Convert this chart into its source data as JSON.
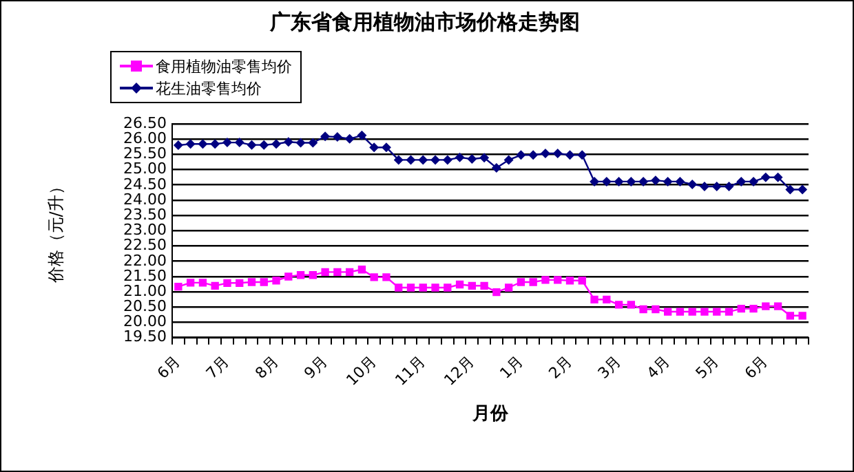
{
  "chart_data": {
    "type": "line",
    "title": "广东省食用植物油市场价格走势图",
    "xlabel": "月份",
    "ylabel": "价格（元/升）",
    "categories": [
      "6月",
      null,
      null,
      null,
      "7月",
      null,
      null,
      null,
      "8月",
      null,
      null,
      null,
      "9月",
      null,
      null,
      null,
      "10月",
      null,
      null,
      null,
      "11月",
      null,
      null,
      null,
      "12月",
      null,
      null,
      null,
      "1月",
      null,
      null,
      null,
      "2月",
      null,
      null,
      null,
      "3月",
      null,
      null,
      null,
      "4月",
      null,
      null,
      null,
      "5月",
      null,
      null,
      null,
      "6月",
      null,
      null,
      null
    ],
    "series": [
      {
        "name": "食用植物油零售均价",
        "color": "#ff00ff",
        "marker": "square",
        "values": [
          21.17,
          21.3,
          21.3,
          21.2,
          21.29,
          21.29,
          21.32,
          21.32,
          21.37,
          21.5,
          21.55,
          21.55,
          21.65,
          21.65,
          21.65,
          21.73,
          21.48,
          21.48,
          21.14,
          21.14,
          21.14,
          21.14,
          21.14,
          21.24,
          21.2,
          21.2,
          20.99,
          21.14,
          21.32,
          21.32,
          21.39,
          21.39,
          21.37,
          21.37,
          20.75,
          20.75,
          20.58,
          20.58,
          20.43,
          20.43,
          20.35,
          20.35,
          20.35,
          20.35,
          20.35,
          20.35,
          20.45,
          20.45,
          20.53,
          20.53,
          20.22,
          20.22
        ]
      },
      {
        "name": "花生油零售均价",
        "color": "#000080",
        "marker": "diamond",
        "values": [
          25.8,
          25.84,
          25.84,
          25.84,
          25.89,
          25.89,
          25.81,
          25.81,
          25.84,
          25.91,
          25.88,
          25.88,
          26.09,
          26.07,
          26.01,
          26.12,
          25.73,
          25.73,
          25.32,
          25.32,
          25.32,
          25.32,
          25.32,
          25.4,
          25.35,
          25.39,
          25.06,
          25.32,
          25.48,
          25.48,
          25.53,
          25.53,
          25.48,
          25.48,
          24.61,
          24.61,
          24.61,
          24.61,
          24.61,
          24.65,
          24.61,
          24.61,
          24.52,
          24.45,
          24.45,
          24.45,
          24.61,
          24.61,
          24.75,
          24.75,
          24.35,
          24.35
        ]
      }
    ],
    "ylim": [
      19.5,
      26.5
    ],
    "yticks": [
      {
        "value": 19.5,
        "label": "19.50"
      },
      {
        "value": 20,
        "label": "20.00"
      },
      {
        "value": 20.5,
        "label": "20.50"
      },
      {
        "value": 21,
        "label": "21.00"
      },
      {
        "value": 21.5,
        "label": "21.50"
      },
      {
        "value": 22,
        "label": "22.00"
      },
      {
        "value": 22.5,
        "label": "22.50"
      },
      {
        "value": 23,
        "label": "23.00"
      },
      {
        "value": 23.5,
        "label": "23.50"
      },
      {
        "value": 24,
        "label": "24.00"
      },
      {
        "value": 24.5,
        "label": "24.50"
      },
      {
        "value": 25,
        "label": "25.00"
      },
      {
        "value": 25.5,
        "label": "25.50"
      },
      {
        "value": 26,
        "label": "26.00"
      },
      {
        "value": 26.5,
        "label": "26.50"
      }
    ],
    "grid": "y",
    "legend": "top left",
    "line_style": "solid"
  }
}
